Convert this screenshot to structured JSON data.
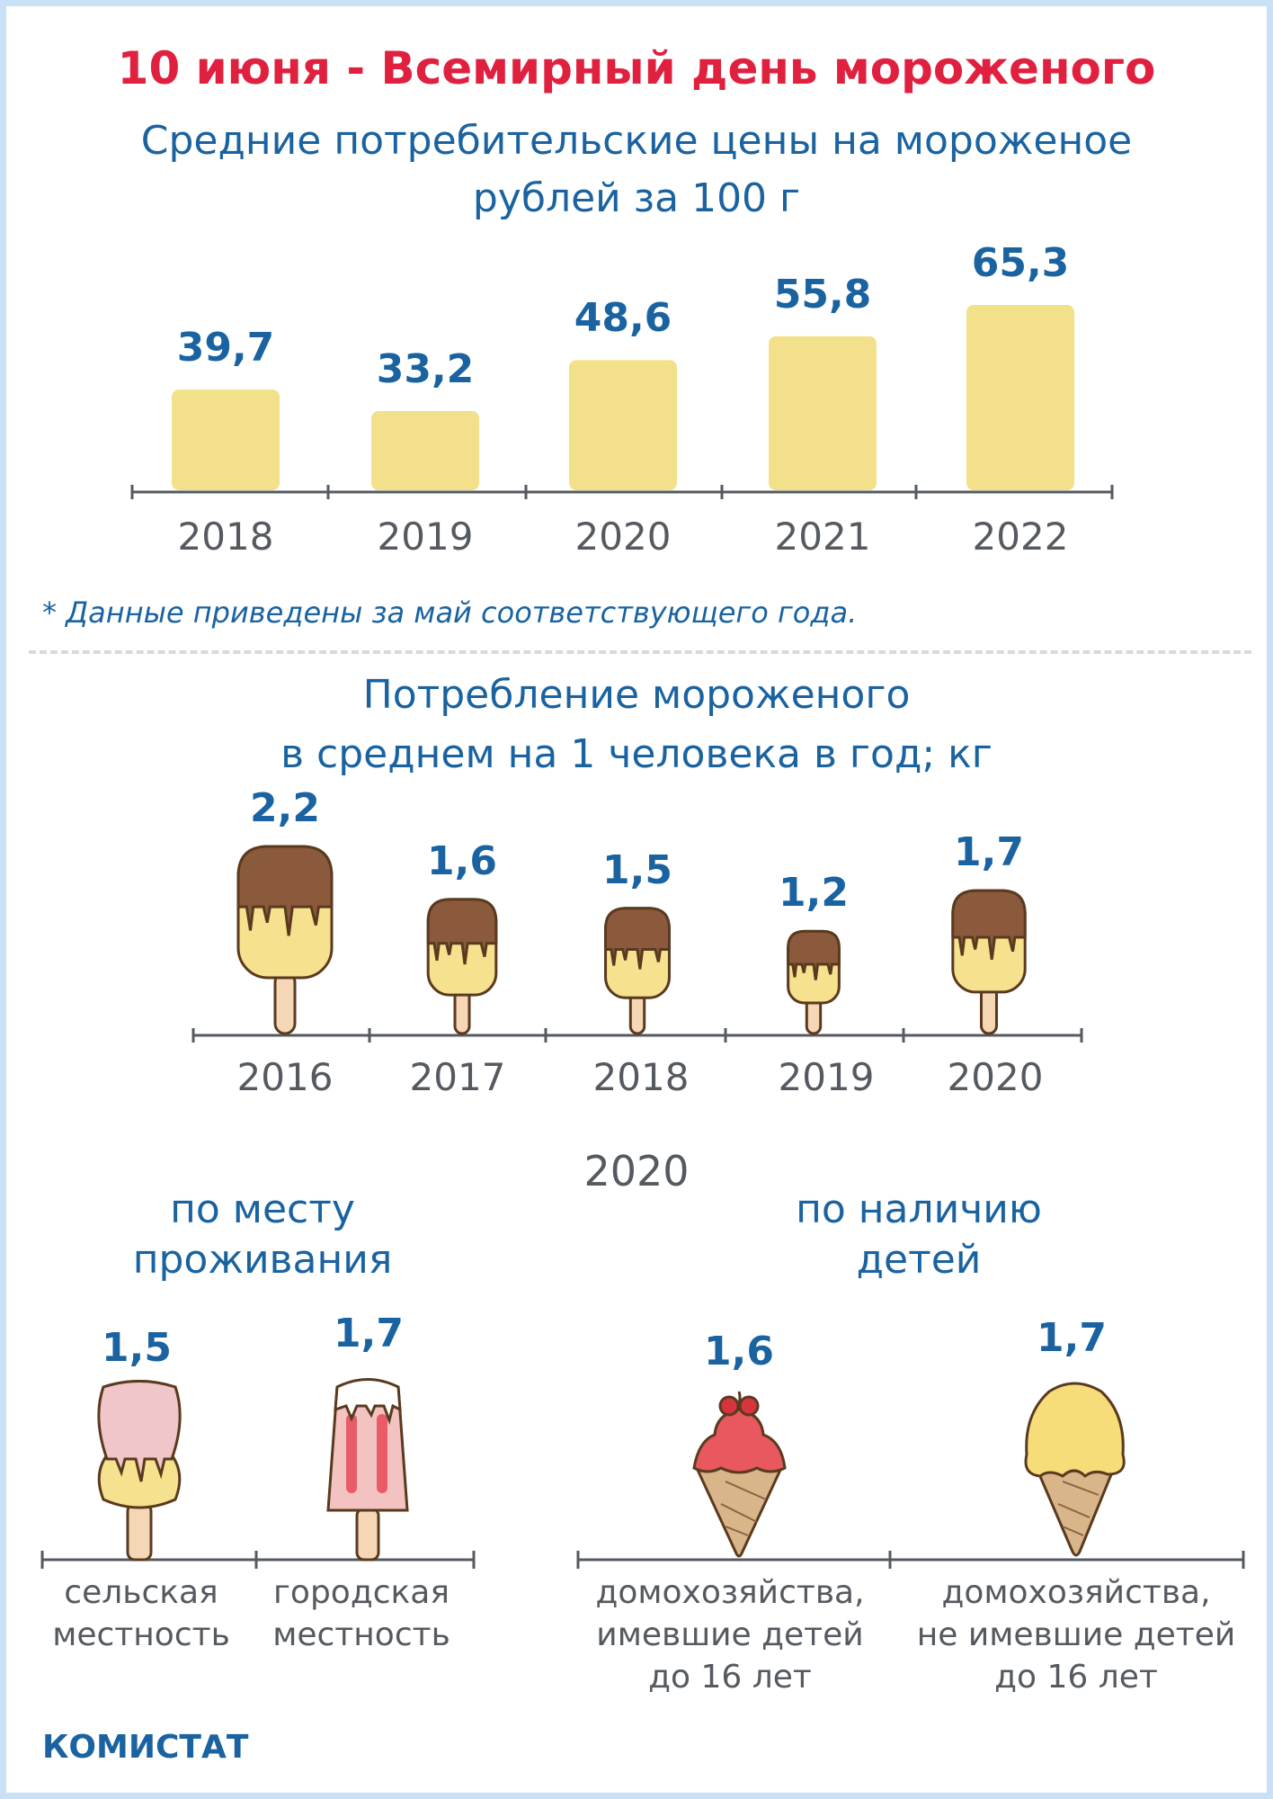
{
  "title": "10 июня - Всемирный день мороженого",
  "colors": {
    "title": "#e0203f",
    "text_blue": "#1a63a0",
    "text_gray": "#555a60",
    "bar": "#f3e08b",
    "border": "#c9e1f7"
  },
  "prices": {
    "subtitle_line1": "Средние потребительские цены на мороженое",
    "subtitle_line2": "рублей за 100 г",
    "note": "* Данные приведены за май соответствующего года."
  },
  "consumption": {
    "subtitle_line1": "Потребление мороженого",
    "subtitle_line2": "в среднем на 1 человека в год; кг"
  },
  "groups": {
    "year": "2020",
    "residence_title_1": "по месту",
    "residence_title_2": "проживания",
    "children_title_1": "по наличию",
    "children_title_2": "детей",
    "items": [
      {
        "value": "1,5",
        "label_1": "сельская",
        "label_2": "местность",
        "label_3": "",
        "icon": "pink-popsicle-icon"
      },
      {
        "value": "1,7",
        "label_1": "городская",
        "label_2": "местность",
        "label_3": "",
        "icon": "striped-popsicle-icon"
      },
      {
        "value": "1,6",
        "label_1": "домохозяйства,",
        "label_2": "имевшие детей",
        "label_3": "до 16 лет",
        "icon": "cherry-cone-icon"
      },
      {
        "value": "1,7",
        "label_1": "домохозяйства,",
        "label_2": "не имевшие детей",
        "label_3": "до 16 лет",
        "icon": "yellow-cone-icon"
      }
    ]
  },
  "brand": "КОМИСТАТ",
  "chart_data": [
    {
      "type": "bar",
      "title": "Средние потребительские цены на мороженое",
      "ylabel": "рублей за 100 г",
      "categories": [
        "2018",
        "2019",
        "2020",
        "2021",
        "2022"
      ],
      "values": [
        39.7,
        33.2,
        48.6,
        55.8,
        65.3
      ],
      "value_labels": [
        "39,7",
        "33,2",
        "48,6",
        "55,8",
        "65,3"
      ],
      "ylim": [
        0,
        70
      ],
      "grid": false,
      "display_note": "bar heights in source are not proportional to values; reproduced as drawn"
    },
    {
      "type": "bar",
      "title": "Потребление мороженого",
      "ylabel": "в среднем на 1 человека в год; кг",
      "categories": [
        "2016",
        "2017",
        "2018",
        "2019",
        "2020"
      ],
      "values": [
        2.2,
        1.6,
        1.5,
        1.2,
        1.7
      ],
      "value_labels": [
        "2,2",
        "1,6",
        "1,5",
        "1,2",
        "1,7"
      ],
      "marker": "popsicle-icon",
      "grid": false
    }
  ]
}
